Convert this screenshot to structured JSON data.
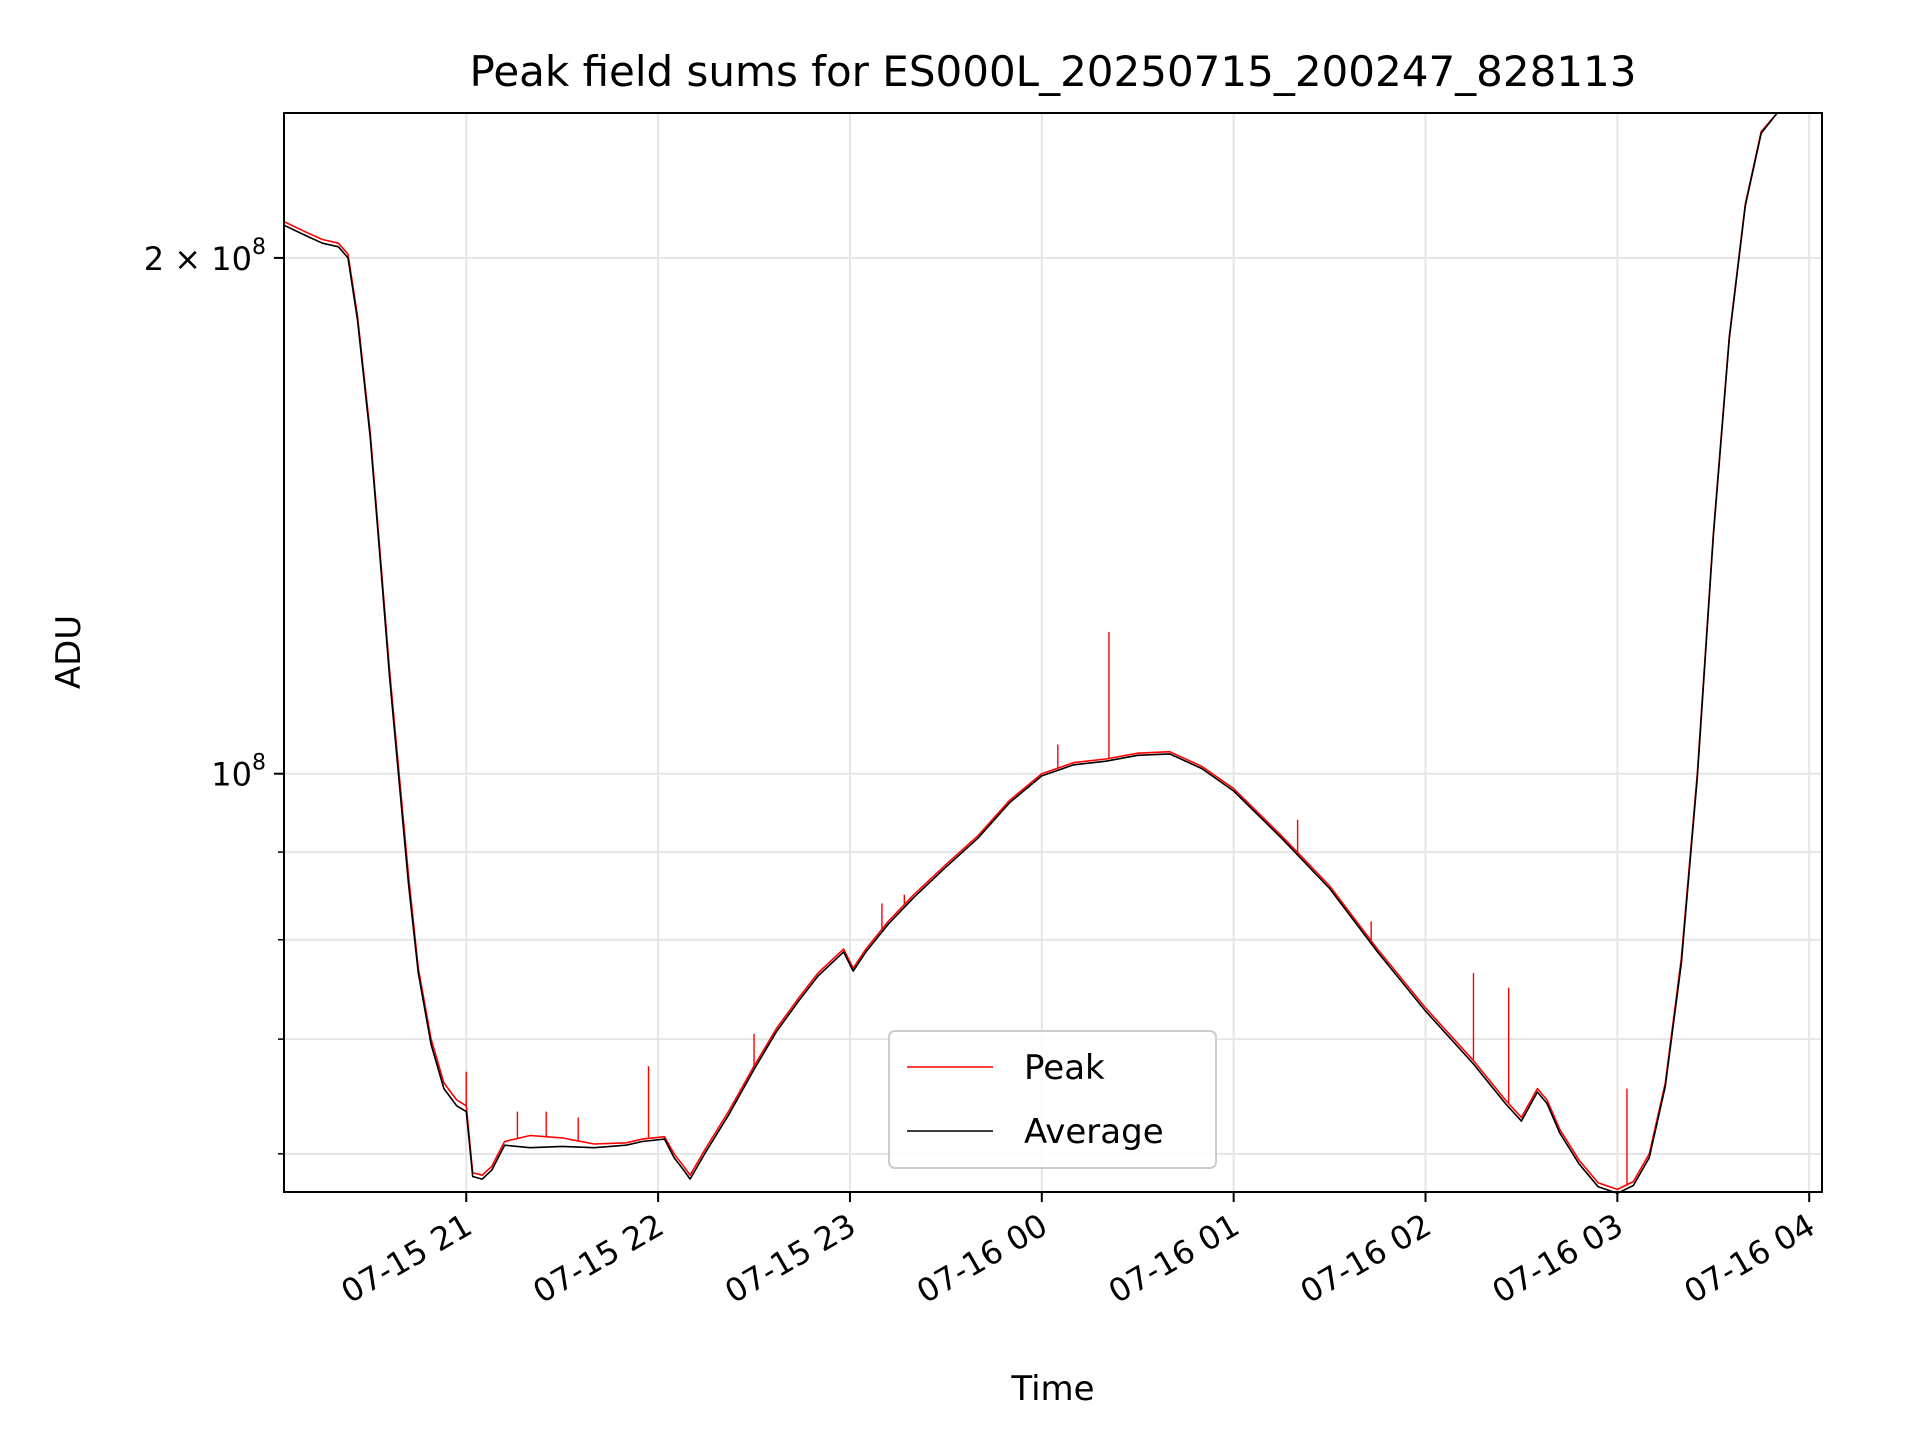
{
  "chart_data": {
    "type": "line",
    "title": "Peak field sums for ES000L_20250715_200247_828113",
    "xlabel": "Time",
    "ylabel": "ADU",
    "y_scale": "log",
    "grid": true,
    "legend_position": "lower-center",
    "x_range": [
      "2025-07-15 20:03",
      "2025-07-16 04:04"
    ],
    "ylim": [
      57000000,
      243000000
    ],
    "x_ticks": [
      {
        "value": "2025-07-15 21:00",
        "label": "07-15 21"
      },
      {
        "value": "2025-07-15 22:00",
        "label": "07-15 22"
      },
      {
        "value": "2025-07-15 23:00",
        "label": "07-15 23"
      },
      {
        "value": "2025-07-16 00:00",
        "label": "07-16 00"
      },
      {
        "value": "2025-07-16 01:00",
        "label": "07-16 01"
      },
      {
        "value": "2025-07-16 02:00",
        "label": "07-16 02"
      },
      {
        "value": "2025-07-16 03:00",
        "label": "07-16 03"
      },
      {
        "value": "2025-07-16 04:00",
        "label": "07-16 04"
      }
    ],
    "y_ticks_major": [
      {
        "value": 100000000,
        "base": "10",
        "exp": "8",
        "mantissa": ""
      },
      {
        "value": 200000000,
        "base": "10",
        "exp": "8",
        "mantissa": "2 × "
      }
    ],
    "y_ticks_minor": [
      60000000,
      70000000,
      80000000,
      90000000
    ],
    "series": [
      {
        "name": "Peak",
        "color": "#ff0000",
        "points": [
          [
            "2025-07-15 20:03",
            210000000
          ],
          [
            "2025-07-15 20:10",
            207000000
          ],
          [
            "2025-07-15 20:15",
            205000000
          ],
          [
            "2025-07-15 20:20",
            204000000
          ],
          [
            "2025-07-15 20:23",
            201000000
          ],
          [
            "2025-07-15 20:26",
            185000000
          ],
          [
            "2025-07-15 20:30",
            158000000
          ],
          [
            "2025-07-15 20:33",
            135000000
          ],
          [
            "2025-07-15 20:36",
            115000000
          ],
          [
            "2025-07-15 20:39",
            100000000
          ],
          [
            "2025-07-15 20:42",
            87000000
          ],
          [
            "2025-07-15 20:45",
            77000000
          ],
          [
            "2025-07-15 20:49",
            70000000
          ],
          [
            "2025-07-15 20:53",
            66000000
          ],
          [
            "2025-07-15 20:57",
            64500000
          ],
          [
            "2025-07-15 21:00",
            64000000
          ],
          [
            "2025-07-15 21:02",
            58500000
          ],
          [
            "2025-07-15 21:05",
            58300000
          ],
          [
            "2025-07-15 21:08",
            59000000
          ],
          [
            "2025-07-15 21:12",
            61000000
          ],
          [
            "2025-07-15 21:20",
            61500000
          ],
          [
            "2025-07-15 21:30",
            61300000
          ],
          [
            "2025-07-15 21:40",
            60800000
          ],
          [
            "2025-07-15 21:50",
            60900000
          ],
          [
            "2025-07-15 21:55",
            61200000
          ],
          [
            "2025-07-15 22:02",
            61400000
          ],
          [
            "2025-07-15 22:05",
            60000000
          ],
          [
            "2025-07-15 22:08",
            59000000
          ],
          [
            "2025-07-15 22:10",
            58300000
          ],
          [
            "2025-07-15 22:15",
            60500000
          ],
          [
            "2025-07-15 22:22",
            63500000
          ],
          [
            "2025-07-15 22:30",
            67500000
          ],
          [
            "2025-07-15 22:37",
            71000000
          ],
          [
            "2025-07-15 22:44",
            74000000
          ],
          [
            "2025-07-15 22:50",
            76500000
          ],
          [
            "2025-07-15 22:58",
            79000000
          ],
          [
            "2025-07-15 23:01",
            77000000
          ],
          [
            "2025-07-15 23:05",
            79000000
          ],
          [
            "2025-07-15 23:12",
            82000000
          ],
          [
            "2025-07-15 23:20",
            85000000
          ],
          [
            "2025-07-15 23:30",
            88500000
          ],
          [
            "2025-07-15 23:40",
            92000000
          ],
          [
            "2025-07-15 23:50",
            96500000
          ],
          [
            "2025-07-16 00:00",
            100000000
          ],
          [
            "2025-07-16 00:10",
            101500000
          ],
          [
            "2025-07-16 00:20",
            102000000
          ],
          [
            "2025-07-16 00:30",
            102800000
          ],
          [
            "2025-07-16 00:40",
            103000000
          ],
          [
            "2025-07-16 00:50",
            101000000
          ],
          [
            "2025-07-16 01:00",
            98000000
          ],
          [
            "2025-07-16 01:15",
            92000000
          ],
          [
            "2025-07-16 01:30",
            86000000
          ],
          [
            "2025-07-16 01:45",
            79000000
          ],
          [
            "2025-07-16 02:00",
            73000000
          ],
          [
            "2025-07-16 02:15",
            68000000
          ],
          [
            "2025-07-16 02:25",
            64500000
          ],
          [
            "2025-07-16 02:30",
            63000000
          ],
          [
            "2025-07-16 02:35",
            65500000
          ],
          [
            "2025-07-16 02:38",
            64500000
          ],
          [
            "2025-07-16 02:42",
            62000000
          ],
          [
            "2025-07-16 02:48",
            59500000
          ],
          [
            "2025-07-16 02:54",
            57700000
          ],
          [
            "2025-07-16 03:00",
            57200000
          ],
          [
            "2025-07-16 03:05",
            57800000
          ],
          [
            "2025-07-16 03:10",
            60000000
          ],
          [
            "2025-07-16 03:15",
            66000000
          ],
          [
            "2025-07-16 03:20",
            78000000
          ],
          [
            "2025-07-16 03:25",
            100000000
          ],
          [
            "2025-07-16 03:30",
            138000000
          ],
          [
            "2025-07-16 03:35",
            180000000
          ],
          [
            "2025-07-16 03:40",
            215000000
          ],
          [
            "2025-07-16 03:45",
            237000000
          ],
          [
            "2025-07-16 03:50",
            243000000
          ]
        ],
        "spikes": [
          [
            "2025-07-15 21:00",
            67000000
          ],
          [
            "2025-07-15 21:16",
            63500000
          ],
          [
            "2025-07-15 21:25",
            63500000
          ],
          [
            "2025-07-15 21:35",
            63000000
          ],
          [
            "2025-07-15 21:57",
            67500000
          ],
          [
            "2025-07-15 22:30",
            70500000
          ],
          [
            "2025-07-15 23:10",
            84000000
          ],
          [
            "2025-07-15 23:17",
            85000000
          ],
          [
            "2025-07-16 00:05",
            104000000
          ],
          [
            "2025-07-16 00:21",
            121000000
          ],
          [
            "2025-07-16 01:20",
            94000000
          ],
          [
            "2025-07-16 01:43",
            82000000
          ],
          [
            "2025-07-16 02:15",
            76500000
          ],
          [
            "2025-07-16 02:26",
            75000000
          ],
          [
            "2025-07-16 03:03",
            65500000
          ]
        ]
      },
      {
        "name": "Average",
        "color": "#000000",
        "points": [
          [
            "2025-07-15 20:03",
            209000000
          ],
          [
            "2025-07-15 20:10",
            206000000
          ],
          [
            "2025-07-15 20:15",
            204000000
          ],
          [
            "2025-07-15 20:20",
            203000000
          ],
          [
            "2025-07-15 20:23",
            200000000
          ],
          [
            "2025-07-15 20:26",
            184000000
          ],
          [
            "2025-07-15 20:30",
            157000000
          ],
          [
            "2025-07-15 20:33",
            134000000
          ],
          [
            "2025-07-15 20:36",
            114000000
          ],
          [
            "2025-07-15 20:39",
            99000000
          ],
          [
            "2025-07-15 20:42",
            86000000
          ],
          [
            "2025-07-15 20:45",
            76500000
          ],
          [
            "2025-07-15 20:49",
            69500000
          ],
          [
            "2025-07-15 20:53",
            65500000
          ],
          [
            "2025-07-15 20:57",
            64000000
          ],
          [
            "2025-07-15 21:00",
            63500000
          ],
          [
            "2025-07-15 21:02",
            58200000
          ],
          [
            "2025-07-15 21:05",
            58000000
          ],
          [
            "2025-07-15 21:08",
            58700000
          ],
          [
            "2025-07-15 21:12",
            60700000
          ],
          [
            "2025-07-15 21:20",
            60500000
          ],
          [
            "2025-07-15 21:30",
            60600000
          ],
          [
            "2025-07-15 21:40",
            60500000
          ],
          [
            "2025-07-15 21:50",
            60700000
          ],
          [
            "2025-07-15 21:55",
            61000000
          ],
          [
            "2025-07-15 22:02",
            61200000
          ],
          [
            "2025-07-15 22:05",
            59700000
          ],
          [
            "2025-07-15 22:08",
            58700000
          ],
          [
            "2025-07-15 22:10",
            58000000
          ],
          [
            "2025-07-15 22:15",
            60200000
          ],
          [
            "2025-07-15 22:22",
            63200000
          ],
          [
            "2025-07-15 22:30",
            67200000
          ],
          [
            "2025-07-15 22:37",
            70700000
          ],
          [
            "2025-07-15 22:44",
            73700000
          ],
          [
            "2025-07-15 22:50",
            76200000
          ],
          [
            "2025-07-15 22:58",
            78700000
          ],
          [
            "2025-07-15 23:01",
            76700000
          ],
          [
            "2025-07-15 23:05",
            78700000
          ],
          [
            "2025-07-15 23:12",
            81700000
          ],
          [
            "2025-07-15 23:20",
            84700000
          ],
          [
            "2025-07-15 23:30",
            88200000
          ],
          [
            "2025-07-15 23:40",
            91700000
          ],
          [
            "2025-07-15 23:50",
            96200000
          ],
          [
            "2025-07-16 00:00",
            99700000
          ],
          [
            "2025-07-16 00:10",
            101200000
          ],
          [
            "2025-07-16 00:20",
            101700000
          ],
          [
            "2025-07-16 00:30",
            102500000
          ],
          [
            "2025-07-16 00:40",
            102700000
          ],
          [
            "2025-07-16 00:50",
            100700000
          ],
          [
            "2025-07-16 01:00",
            97700000
          ],
          [
            "2025-07-16 01:15",
            91700000
          ],
          [
            "2025-07-16 01:30",
            85700000
          ],
          [
            "2025-07-16 01:45",
            78700000
          ],
          [
            "2025-07-16 02:00",
            72700000
          ],
          [
            "2025-07-16 02:15",
            67700000
          ],
          [
            "2025-07-16 02:25",
            64200000
          ],
          [
            "2025-07-16 02:30",
            62700000
          ],
          [
            "2025-07-16 02:35",
            65200000
          ],
          [
            "2025-07-16 02:38",
            64200000
          ],
          [
            "2025-07-16 02:42",
            61700000
          ],
          [
            "2025-07-16 02:48",
            59200000
          ],
          [
            "2025-07-16 02:54",
            57400000
          ],
          [
            "2025-07-16 03:00",
            56900000
          ],
          [
            "2025-07-16 03:05",
            57500000
          ],
          [
            "2025-07-16 03:10",
            59700000
          ],
          [
            "2025-07-16 03:15",
            65700000
          ],
          [
            "2025-07-16 03:20",
            77500000
          ],
          [
            "2025-07-16 03:25",
            99500000
          ],
          [
            "2025-07-16 03:30",
            137500000
          ],
          [
            "2025-07-16 03:35",
            179500000
          ],
          [
            "2025-07-16 03:40",
            214500000
          ],
          [
            "2025-07-16 03:45",
            236500000
          ],
          [
            "2025-07-16 03:50",
            243000000
          ]
        ]
      }
    ]
  }
}
